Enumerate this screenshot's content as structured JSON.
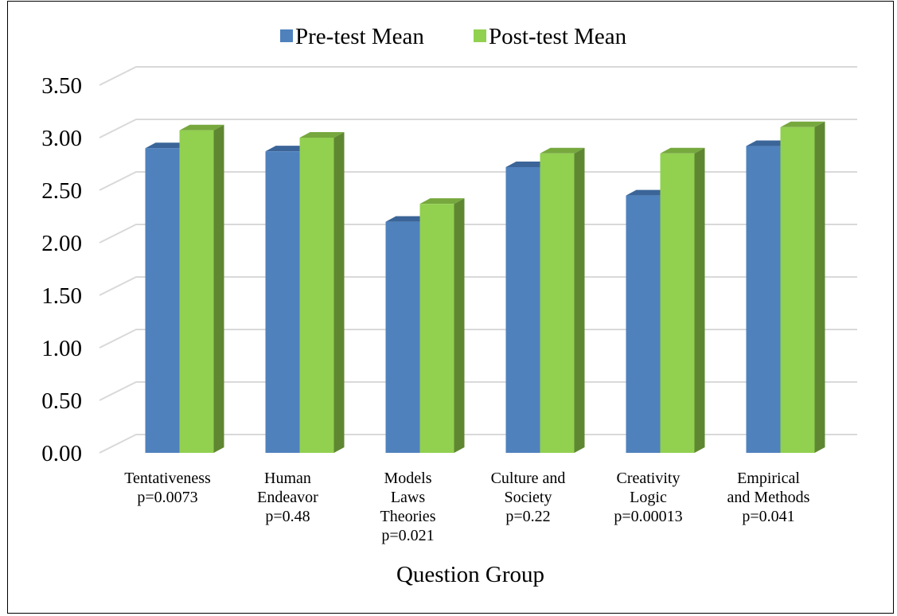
{
  "chart_data": {
    "type": "bar",
    "title": "",
    "xlabel": "Question Group",
    "ylabel": "",
    "ylim": [
      0,
      3.5
    ],
    "yticks": [
      "0.00",
      "0.50",
      "1.00",
      "1.50",
      "2.00",
      "2.50",
      "3.00",
      "3.50"
    ],
    "grid": true,
    "legend_position": "top",
    "categories": [
      [
        "Tentativeness",
        "p=0.0073"
      ],
      [
        "Human",
        "Endeavor",
        "p=0.48"
      ],
      [
        "Models",
        "Laws",
        "Theories",
        "p=0.021"
      ],
      [
        "Culture and",
        "Society",
        "p=0.22"
      ],
      [
        "Creativity",
        "Logic",
        "p=0.00013"
      ],
      [
        "Empirical",
        "and Methods",
        "p=0.041"
      ]
    ],
    "series": [
      {
        "name": "Pre-test Mean",
        "color": "#4F81BD",
        "top_color": "#3B6598",
        "side_color": "#3A6494",
        "values": [
          2.9,
          2.87,
          2.2,
          2.72,
          2.45,
          2.92
        ]
      },
      {
        "name": "Post-test Mean",
        "color": "#92D050",
        "top_color": "#76A83E",
        "side_color": "#5F8732",
        "values": [
          3.07,
          3.0,
          2.37,
          2.85,
          2.85,
          3.1
        ]
      }
    ]
  }
}
